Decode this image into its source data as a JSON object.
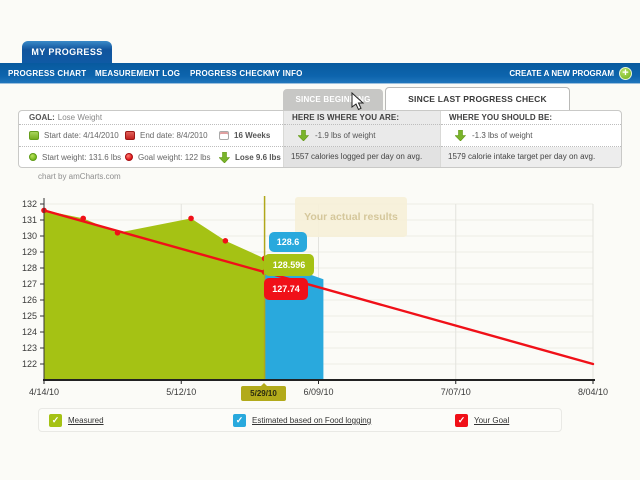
{
  "icons": {
    "plus": "+",
    "check": "✓"
  },
  "colors": {
    "nav_blue": "#0b5fa6",
    "green": "#a5c214",
    "blue": "#29a9dd",
    "red": "#f01018",
    "olive": "#b2aa1a"
  },
  "header": {
    "tab": "MY PROGRESS",
    "nav": [
      "PROGRESS CHART",
      "MEASUREMENT LOG",
      "PROGRESS CHECK",
      "MY INFO"
    ],
    "create_program": "CREATE A NEW PROGRAM"
  },
  "tabs": [
    {
      "label": "SINCE BEGINNING"
    },
    {
      "label": "SINCE LAST PROGRESS CHECK"
    }
  ],
  "goal": {
    "label": "GOAL:",
    "value": "Lose Weight",
    "row1": [
      {
        "text": "Start date: 4/14/2010"
      },
      {
        "text": "End date: 8/4/2010"
      },
      {
        "text": "16 Weeks"
      }
    ],
    "row2": [
      {
        "text": "Start weight: 131.6 lbs"
      },
      {
        "text": "Goal weight: 122 lbs"
      },
      {
        "text": "Lose 9.6 lbs"
      }
    ]
  },
  "here": {
    "title": "HERE IS WHERE YOU ARE:",
    "weight": "-1.9 lbs of weight",
    "calories": "1557 calories logged per day on avg."
  },
  "should": {
    "title": "WHERE YOU SHOULD BE:",
    "weight": "-1.3 lbs of weight",
    "calories": "1579 calorie intake target per day on avg."
  },
  "chart_credit": "chart by amCharts.com",
  "legend": [
    {
      "label": "Measured",
      "color": "#a5c214"
    },
    {
      "label": "Estimated based on Food logging",
      "color": "#29a9dd"
    },
    {
      "label": "Your Goal",
      "color": "#f01018"
    }
  ],
  "chart_data": {
    "type": "area",
    "title": "",
    "tooltip": "Your actual results",
    "grid": true,
    "legend_position": "bottom",
    "x_axis": {
      "unit": "date",
      "range_days": [
        0,
        112
      ],
      "ticks": [
        {
          "label": "4/14/10",
          "day": 0
        },
        {
          "label": "5/12/10",
          "day": 28
        },
        {
          "label": "6/09/10",
          "day": 56
        },
        {
          "label": "7/07/10",
          "day": 84
        },
        {
          "label": "8/04/10",
          "day": 112
        }
      ]
    },
    "y_axis": {
      "ticks": [
        132,
        131,
        130,
        129,
        128,
        127,
        126,
        125,
        124,
        123,
        122
      ],
      "range": [
        121,
        132
      ]
    },
    "series": [
      {
        "name": "Measured",
        "type": "area",
        "color": "#a5c214",
        "bullet_color": "#f01018",
        "points": [
          {
            "day": 0,
            "date": "4/14/10",
            "value": 131.6
          },
          {
            "day": 8,
            "date": "4/22/10",
            "value": 131.1
          },
          {
            "day": 15,
            "date": "4/29/10",
            "value": 130.2
          },
          {
            "day": 30,
            "date": "5/14/10",
            "value": 131.1
          },
          {
            "day": 37,
            "date": "5/21/10",
            "value": 129.7
          },
          {
            "day": 45,
            "date": "5/29/10",
            "value": 128.596
          }
        ]
      },
      {
        "name": "Estimated based on Food logging",
        "type": "area",
        "color": "#29a9dd",
        "points": [
          {
            "day": 45,
            "date": "5/29/10",
            "value": 128.6
          },
          {
            "day": 57,
            "date": "6/10/10",
            "value": 127.3
          }
        ]
      },
      {
        "name": "Your Goal",
        "type": "line",
        "color": "#f01018",
        "points": [
          {
            "day": 0,
            "date": "4/14/10",
            "value": 131.6
          },
          {
            "day": 112,
            "date": "8/04/10",
            "value": 122
          }
        ]
      }
    ],
    "cursor": {
      "day": 45,
      "date_label": "5/29/10",
      "estimated": "128.6",
      "measured": "128.596",
      "goal": "127.74"
    }
  }
}
